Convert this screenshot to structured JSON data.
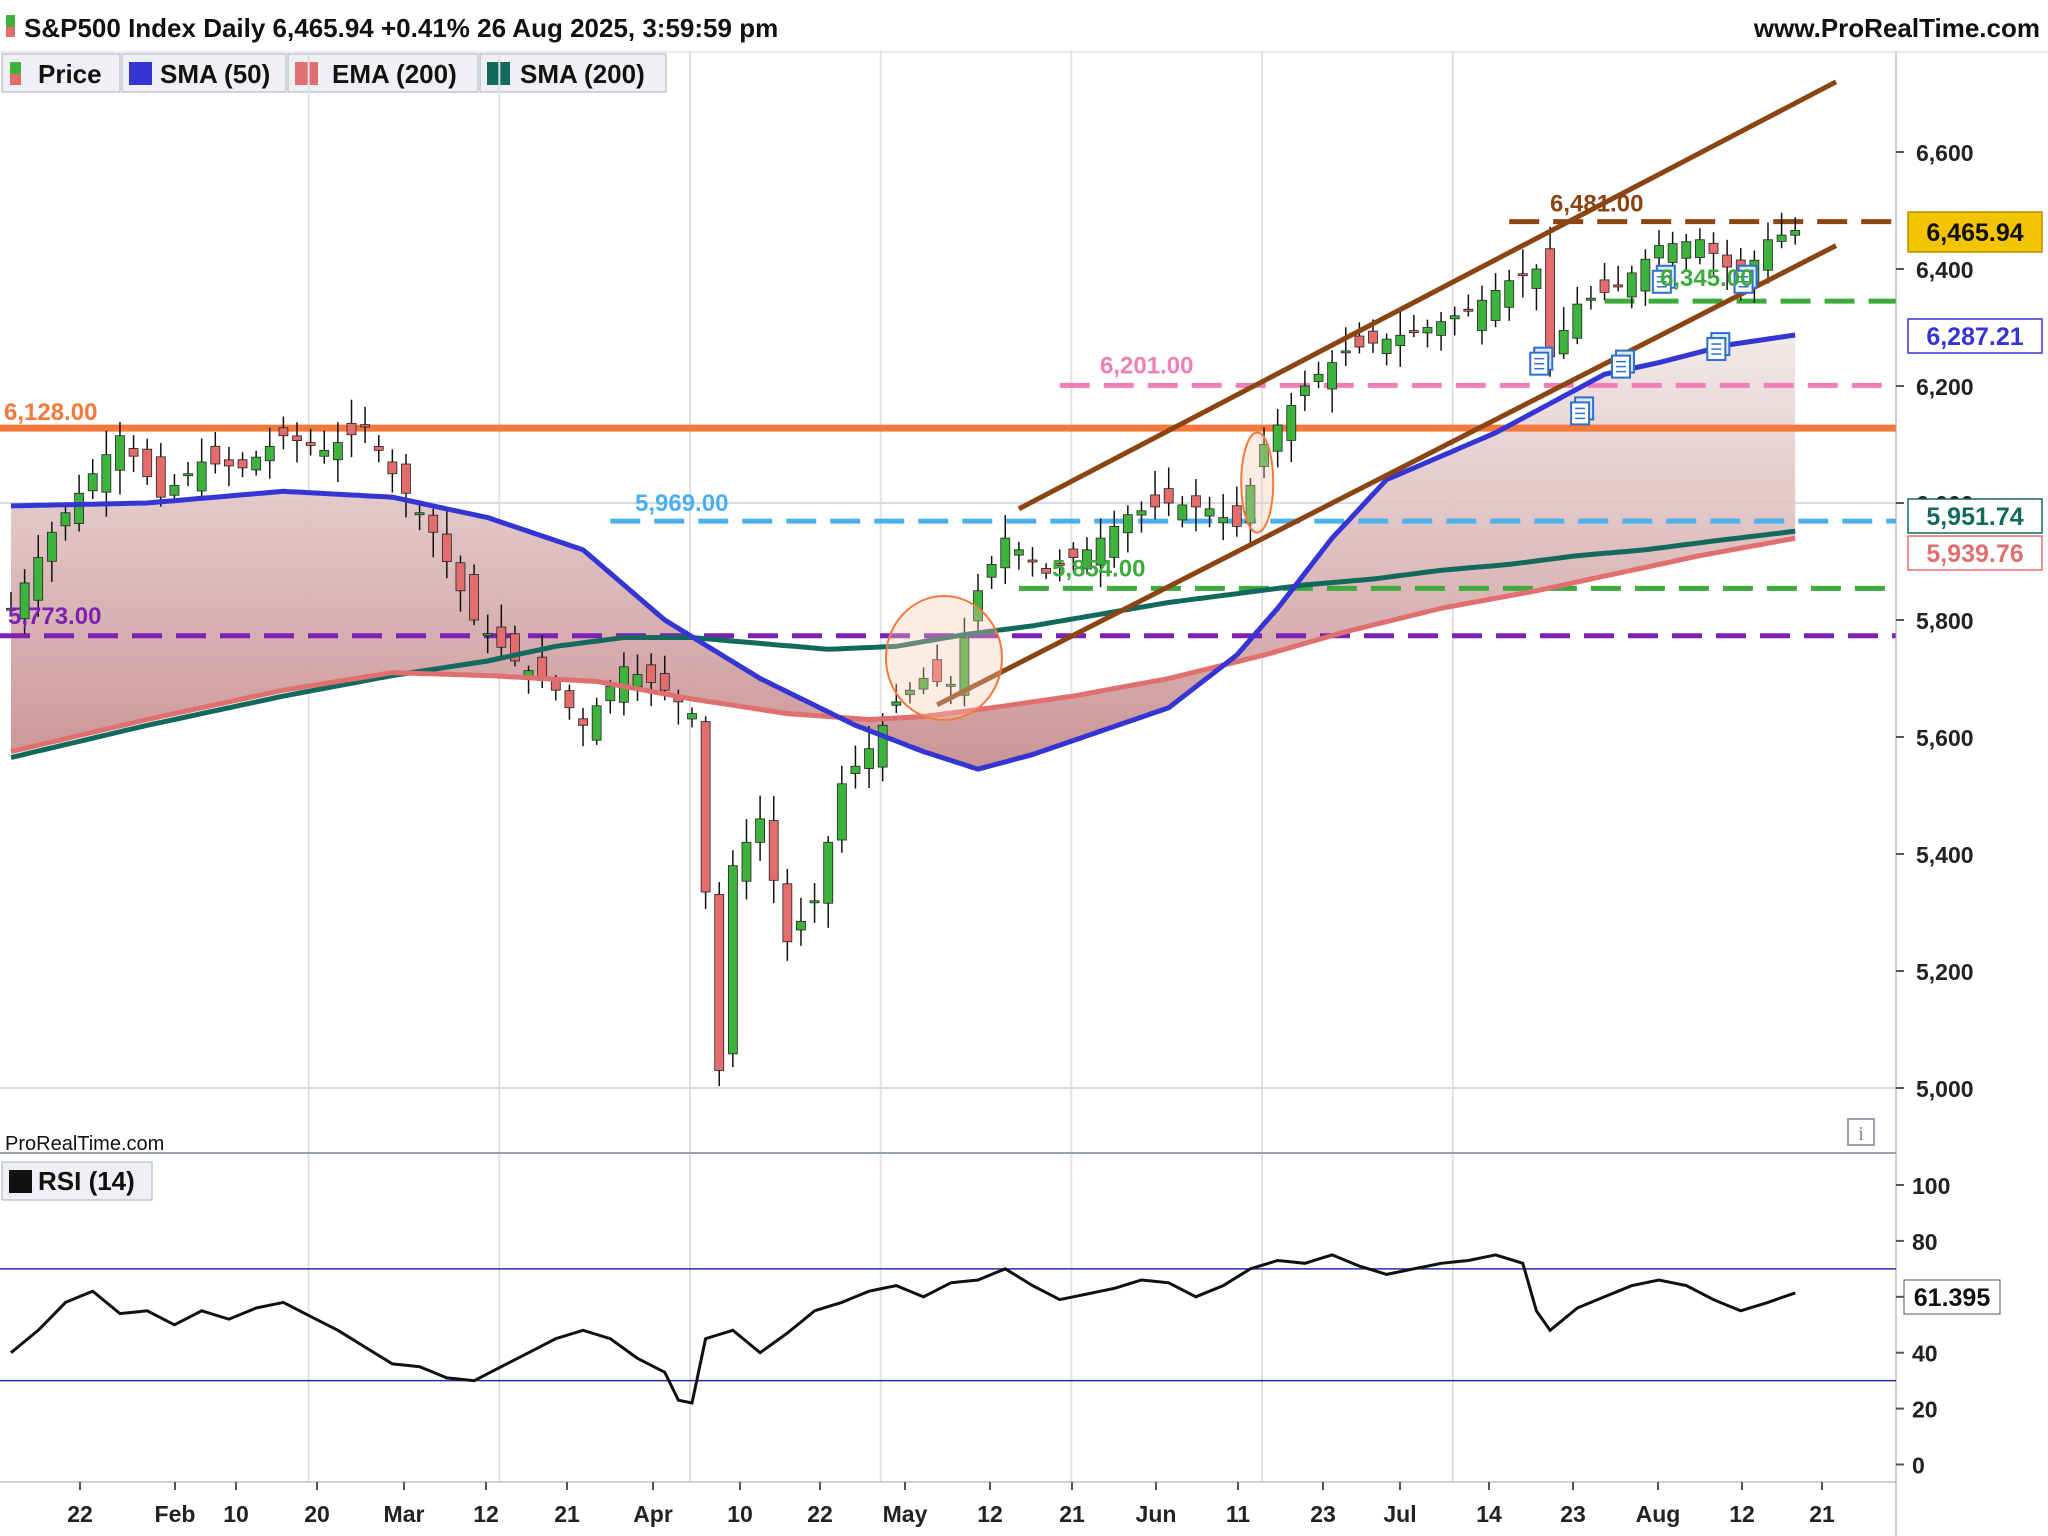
{
  "header": {
    "title": "S&P500 Index Daily 6,465.94 +0.41% 26 Aug 2025, 3:59:59 pm",
    "site": "www.ProRealTime.com",
    "watermark": "ProRealTime.com"
  },
  "legend": [
    {
      "label": "Price",
      "swatch": [
        "#3db33d",
        "#e36d6d"
      ]
    },
    {
      "label": "SMA (50)",
      "swatch": [
        "#3535d4"
      ]
    },
    {
      "label": "EMA (200)",
      "swatch": [
        "#e07070"
      ]
    },
    {
      "label": "SMA (200)",
      "swatch": [
        "#14695e"
      ]
    }
  ],
  "rsi_legend": {
    "label": "RSI (14)",
    "value": "61.395"
  },
  "colors": {
    "up": "#3db33d",
    "down": "#e36d6d",
    "sma50": "#3535d4",
    "ema200": "#e07070",
    "sma200": "#14695e",
    "channel": "#8b4513",
    "last_price_bg": "#f5c400"
  },
  "chart_data": {
    "type": "candlestick",
    "title": "S&P500 Index Daily",
    "ylim": [
      4800,
      6760
    ],
    "y_ticks": [
      "6,600",
      "6,400",
      "6,200",
      "6,000",
      "5,800",
      "5,600",
      "5,400",
      "5,200",
      "5,000"
    ],
    "x_ticks": [
      "22",
      "Feb",
      "10",
      "20",
      "Mar",
      "12",
      "21",
      "Apr",
      "10",
      "22",
      "May",
      "12",
      "21",
      "Jun",
      "11",
      "23",
      "Jul",
      "14",
      "23",
      "Aug",
      "12",
      "21"
    ],
    "close_path": [
      [
        0,
        5820
      ],
      [
        3,
        5950
      ],
      [
        6,
        6050
      ],
      [
        8,
        6115
      ],
      [
        11,
        6010
      ],
      [
        14,
        6070
      ],
      [
        17,
        6060
      ],
      [
        20,
        6115
      ],
      [
        23,
        6090
      ],
      [
        26,
        6130
      ],
      [
        28,
        6050
      ],
      [
        31,
        5950
      ],
      [
        34,
        5800
      ],
      [
        37,
        5730
      ],
      [
        40,
        5680
      ],
      [
        42,
        5620
      ],
      [
        45,
        5720
      ],
      [
        48,
        5680
      ],
      [
        50,
        5640
      ],
      [
        52,
        5030
      ],
      [
        53,
        5380
      ],
      [
        55,
        5460
      ],
      [
        57,
        5250
      ],
      [
        59,
        5320
      ],
      [
        61,
        5520
      ],
      [
        63,
        5580
      ],
      [
        65,
        5660
      ],
      [
        67,
        5700
      ],
      [
        69,
        5690
      ],
      [
        71,
        5850
      ],
      [
        73,
        5940
      ],
      [
        76,
        5880
      ],
      [
        79,
        5920
      ],
      [
        82,
        5980
      ],
      [
        85,
        6000
      ],
      [
        88,
        5990
      ],
      [
        90,
        5960
      ],
      [
        92,
        6100
      ],
      [
        95,
        6200
      ],
      [
        98,
        6260
      ],
      [
        101,
        6280
      ],
      [
        104,
        6300
      ],
      [
        107,
        6330
      ],
      [
        110,
        6380
      ],
      [
        112,
        6400
      ],
      [
        113,
        6250
      ],
      [
        115,
        6340
      ],
      [
        118,
        6370
      ],
      [
        121,
        6440
      ],
      [
        124,
        6450
      ],
      [
        127,
        6380
      ],
      [
        129,
        6450
      ],
      [
        131,
        6465.94
      ]
    ],
    "indicators": {
      "sma50": [
        [
          0,
          5995
        ],
        [
          10,
          6000
        ],
        [
          20,
          6020
        ],
        [
          28,
          6010
        ],
        [
          35,
          5975
        ],
        [
          42,
          5920
        ],
        [
          48,
          5800
        ],
        [
          55,
          5700
        ],
        [
          62,
          5620
        ],
        [
          67,
          5575
        ],
        [
          71,
          5545
        ],
        [
          75,
          5570
        ],
        [
          80,
          5610
        ],
        [
          85,
          5650
        ],
        [
          90,
          5740
        ],
        [
          93,
          5820
        ],
        [
          97,
          5940
        ],
        [
          101,
          6040
        ],
        [
          105,
          6080
        ],
        [
          109,
          6120
        ],
        [
          113,
          6170
        ],
        [
          117,
          6220
        ],
        [
          121,
          6240
        ],
        [
          126,
          6270
        ],
        [
          131,
          6287.21
        ]
      ],
      "ema200": [
        [
          0,
          5575
        ],
        [
          10,
          5630
        ],
        [
          20,
          5680
        ],
        [
          28,
          5710
        ],
        [
          35,
          5705
        ],
        [
          43,
          5695
        ],
        [
          50,
          5665
        ],
        [
          57,
          5640
        ],
        [
          63,
          5630
        ],
        [
          67,
          5635
        ],
        [
          72,
          5650
        ],
        [
          78,
          5670
        ],
        [
          85,
          5700
        ],
        [
          92,
          5740
        ],
        [
          98,
          5780
        ],
        [
          105,
          5820
        ],
        [
          112,
          5850
        ],
        [
          118,
          5880
        ],
        [
          124,
          5910
        ],
        [
          131,
          5939.76
        ]
      ],
      "sma200": [
        [
          0,
          5565
        ],
        [
          10,
          5620
        ],
        [
          20,
          5670
        ],
        [
          28,
          5705
        ],
        [
          35,
          5730
        ],
        [
          40,
          5755
        ],
        [
          45,
          5770
        ],
        [
          50,
          5770
        ],
        [
          55,
          5760
        ],
        [
          60,
          5750
        ],
        [
          65,
          5755
        ],
        [
          70,
          5775
        ],
        [
          75,
          5790
        ],
        [
          80,
          5810
        ],
        [
          85,
          5830
        ],
        [
          90,
          5845
        ],
        [
          95,
          5860
        ],
        [
          100,
          5870
        ],
        [
          105,
          5885
        ],
        [
          110,
          5895
        ],
        [
          115,
          5910
        ],
        [
          120,
          5920
        ],
        [
          125,
          5935
        ],
        [
          131,
          5951.74
        ]
      ]
    },
    "levels": [
      {
        "label": "6,481.00",
        "value": 6481,
        "color": "#8b4513",
        "style": "dashed",
        "x_from": 110
      },
      {
        "label": "6,345.00",
        "value": 6345,
        "color": "#3daa3d",
        "style": "dashed",
        "x_from": 117
      },
      {
        "label": "6,201.00",
        "value": 6201,
        "color": "#ef7fb6",
        "style": "dashed",
        "x_from": 77
      },
      {
        "label": "6,128.00",
        "value": 6128,
        "color": "#f47a3c",
        "style": "solid",
        "x_from": 0
      },
      {
        "label": "5,969.00",
        "value": 5969,
        "color": "#4db0ee",
        "style": "dashed",
        "x_from": 44
      },
      {
        "label": "5,854.00",
        "value": 5854,
        "color": "#3daa3d",
        "style": "dashed",
        "x_from": 74
      },
      {
        "label": "5,773.00",
        "value": 5773,
        "color": "#7b22b4",
        "style": "dashed",
        "x_from": 0
      }
    ],
    "channel": [
      {
        "from": [
          74,
          5990
        ],
        "to": [
          134,
          6720
        ]
      },
      {
        "from": [
          68,
          5655
        ],
        "to": [
          134,
          6440
        ]
      }
    ],
    "price_badges": [
      {
        "label": "6,465.94",
        "value": 6465.94
      },
      {
        "label": "6,287.21",
        "value": 6287.21
      },
      {
        "label": "5,951.74",
        "value": 5951.74
      },
      {
        "label": "5,939.76",
        "value": 5939.76
      }
    ],
    "rsi": {
      "ylim": [
        0,
        100
      ],
      "y_ticks": [
        "100",
        "80",
        "60",
        "40",
        "20",
        "0"
      ],
      "bands": [
        70,
        30
      ],
      "path": [
        [
          0,
          40
        ],
        [
          2,
          48
        ],
        [
          4,
          58
        ],
        [
          6,
          62
        ],
        [
          8,
          54
        ],
        [
          10,
          55
        ],
        [
          12,
          50
        ],
        [
          14,
          55
        ],
        [
          16,
          52
        ],
        [
          18,
          56
        ],
        [
          20,
          58
        ],
        [
          22,
          53
        ],
        [
          24,
          48
        ],
        [
          26,
          42
        ],
        [
          28,
          36
        ],
        [
          30,
          35
        ],
        [
          32,
          31
        ],
        [
          34,
          30
        ],
        [
          36,
          35
        ],
        [
          38,
          40
        ],
        [
          40,
          45
        ],
        [
          42,
          48
        ],
        [
          44,
          45
        ],
        [
          46,
          38
        ],
        [
          48,
          33
        ],
        [
          49,
          23
        ],
        [
          50,
          22
        ],
        [
          51,
          45
        ],
        [
          53,
          48
        ],
        [
          55,
          40
        ],
        [
          57,
          47
        ],
        [
          59,
          55
        ],
        [
          61,
          58
        ],
        [
          63,
          62
        ],
        [
          65,
          64
        ],
        [
          67,
          60
        ],
        [
          69,
          65
        ],
        [
          71,
          66
        ],
        [
          73,
          70
        ],
        [
          75,
          64
        ],
        [
          77,
          59
        ],
        [
          79,
          61
        ],
        [
          81,
          63
        ],
        [
          83,
          66
        ],
        [
          85,
          65
        ],
        [
          87,
          60
        ],
        [
          89,
          64
        ],
        [
          91,
          70
        ],
        [
          93,
          73
        ],
        [
          95,
          72
        ],
        [
          97,
          75
        ],
        [
          99,
          71
        ],
        [
          101,
          68
        ],
        [
          103,
          70
        ],
        [
          105,
          72
        ],
        [
          107,
          73
        ],
        [
          109,
          75
        ],
        [
          111,
          72
        ],
        [
          112,
          55
        ],
        [
          113,
          48
        ],
        [
          115,
          56
        ],
        [
          117,
          60
        ],
        [
          119,
          64
        ],
        [
          121,
          66
        ],
        [
          123,
          64
        ],
        [
          125,
          59
        ],
        [
          127,
          55
        ],
        [
          129,
          58
        ],
        [
          131,
          61.395
        ]
      ]
    }
  }
}
